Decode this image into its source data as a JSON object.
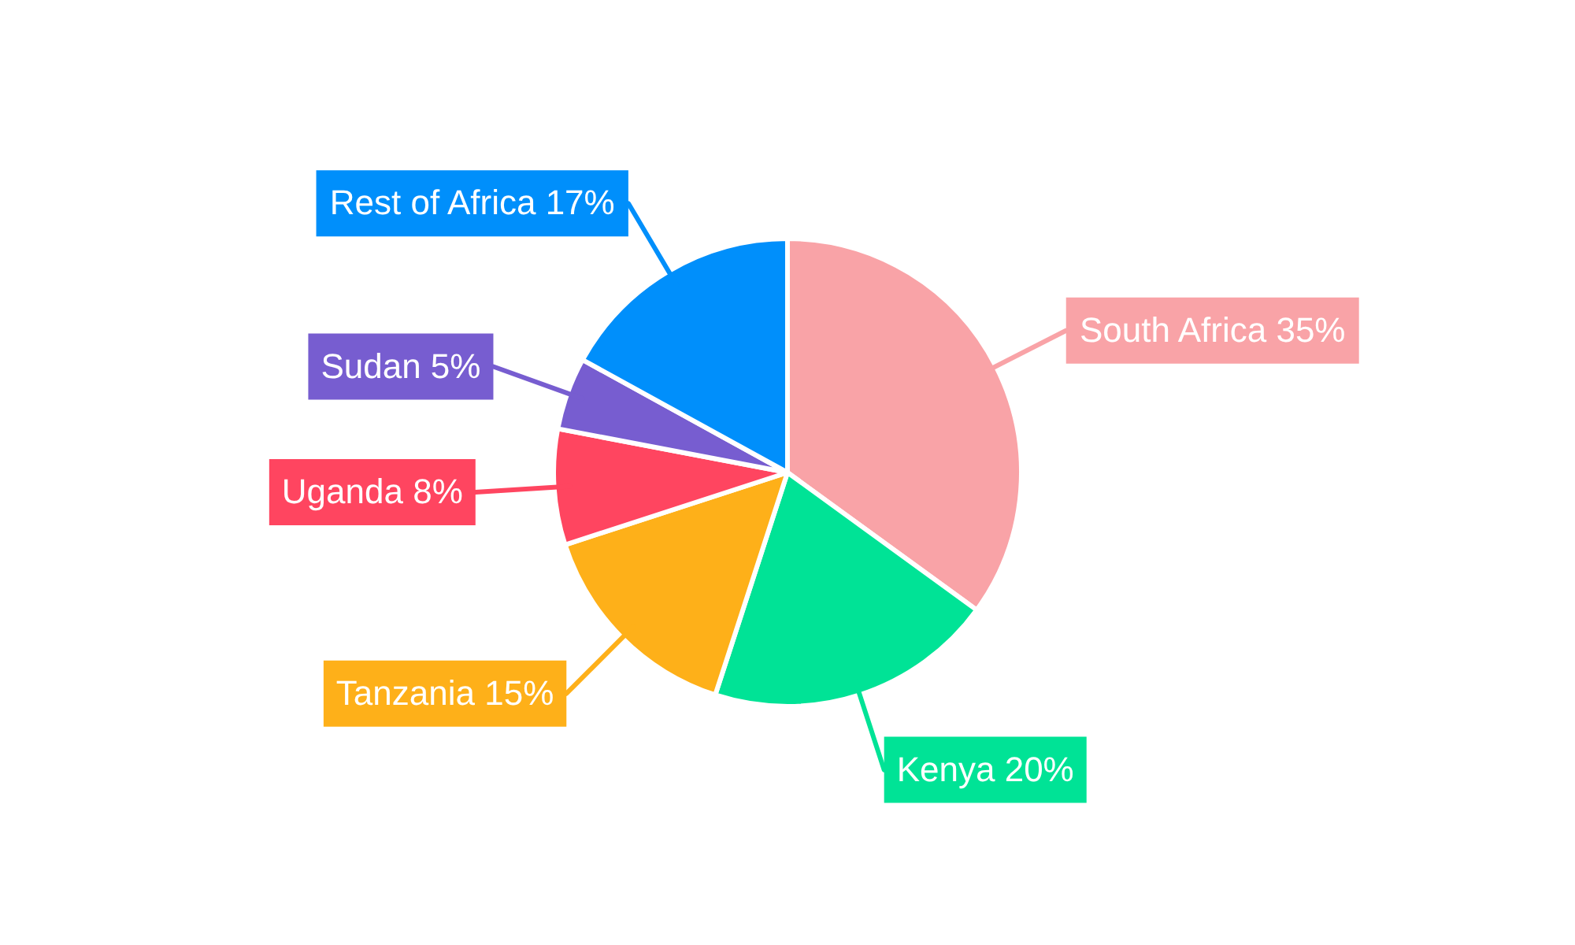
{
  "chart_data": {
    "type": "pie",
    "categories": [
      "South Africa",
      "Kenya",
      "Tanzania",
      "Uganda",
      "Sudan",
      "Rest of Africa"
    ],
    "values": [
      35,
      20,
      15,
      8,
      5,
      17
    ],
    "value_labels": [
      "35%",
      "20%",
      "15%",
      "8%",
      "5%",
      "17%"
    ],
    "colors": [
      "#f9a3a7",
      "#00e396",
      "#feb019",
      "#ff4560",
      "#775dd0",
      "#008ffb"
    ],
    "legend": false
  }
}
